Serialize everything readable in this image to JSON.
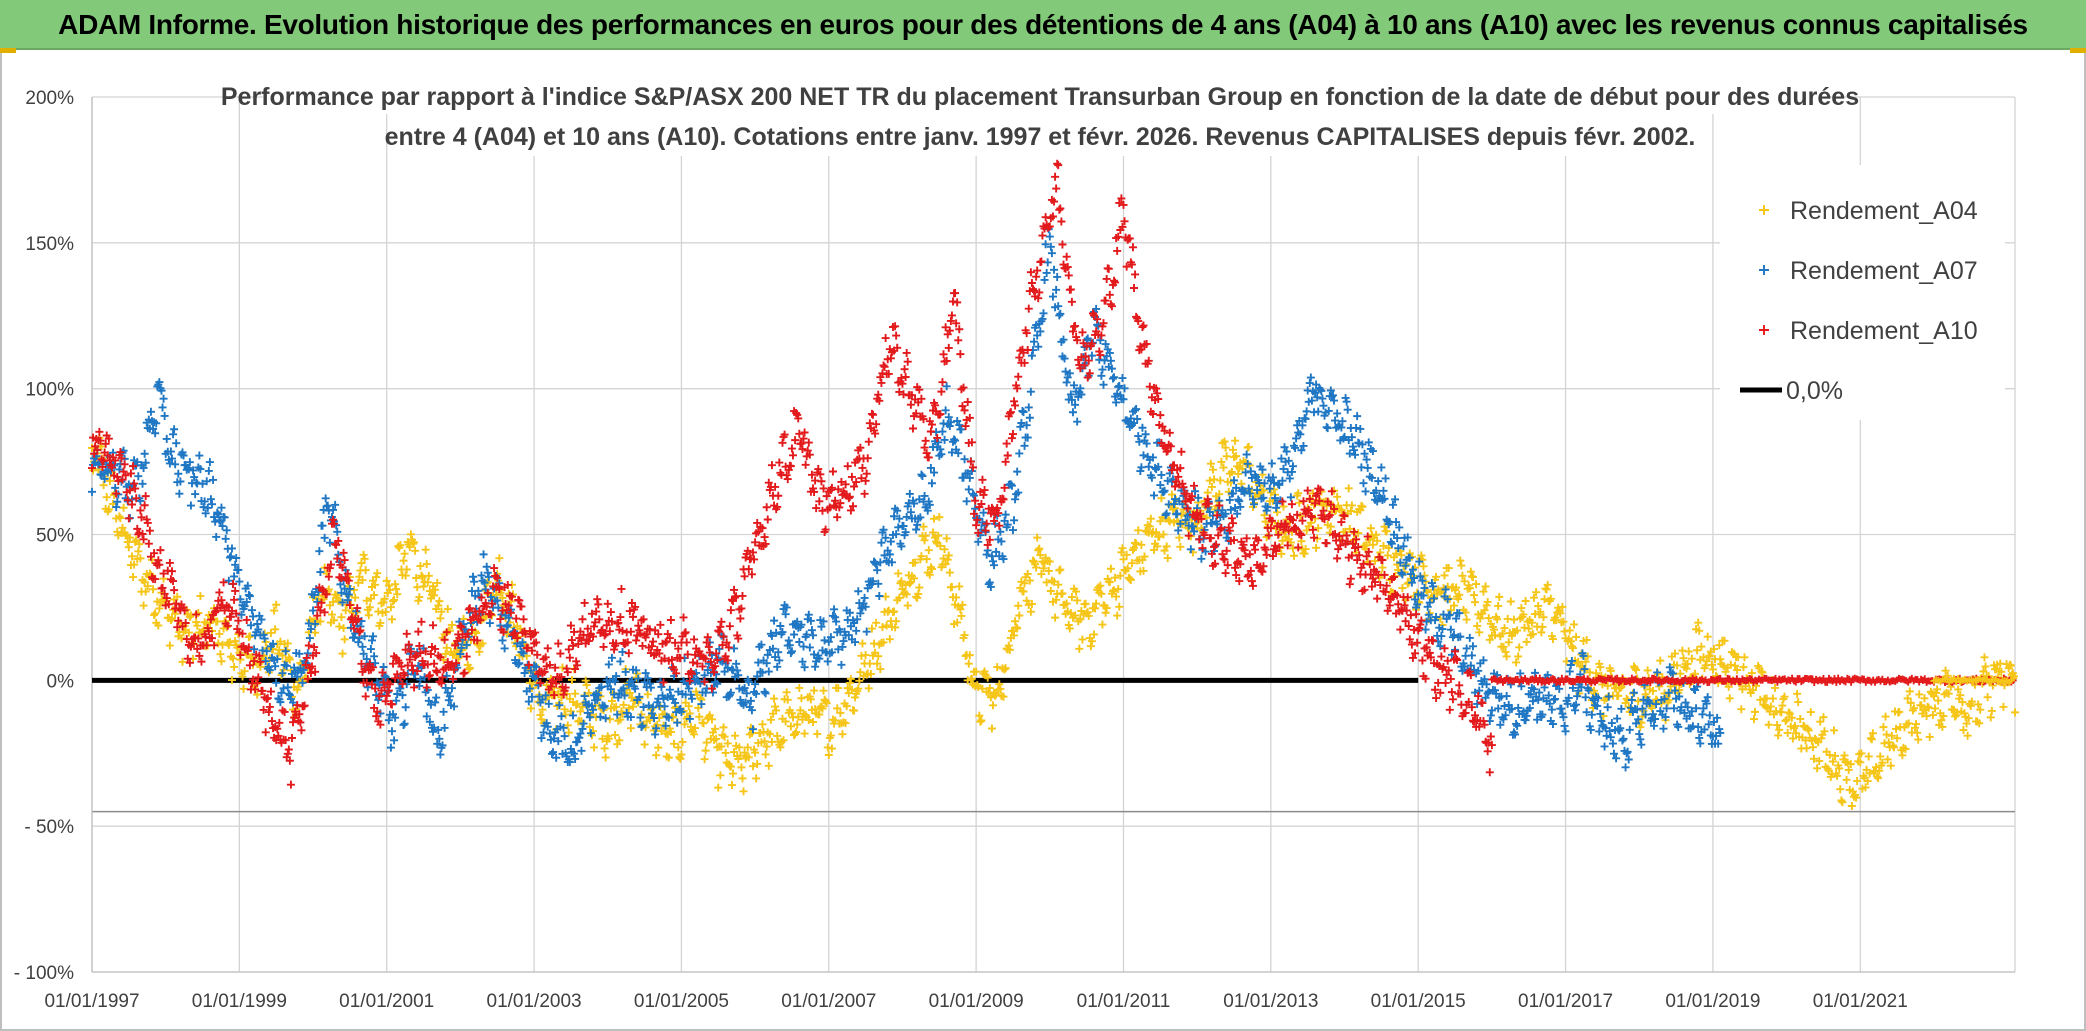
{
  "banner": {
    "title": "ADAM Informe. Evolution historique des performances en euros pour des détentions de 4 ans (A04) à 10 ans (A10) avec les revenus connus capitalisés",
    "background": "#82c97a"
  },
  "chart_data": {
    "type": "scatter",
    "title_line1": "Performance par rapport à l'indice S&P/ASX 200 NET TR  du placement Transurban Group en fonction de la date de début pour des durées",
    "title_line2": "entre 4 (A04) et 10 ans (A10). Cotations entre janv. 1997 et févr. 2026. Revenus CAPITALISES depuis févr. 2002.",
    "xlabel": "",
    "ylabel": "",
    "xlim": [
      1997.0,
      2023.1
    ],
    "ylim": [
      -100,
      200
    ],
    "y_ticks": [
      {
        "value": 200,
        "label": "200%"
      },
      {
        "value": 150,
        "label": "150%"
      },
      {
        "value": 100,
        "label": "100%"
      },
      {
        "value": 50,
        "label": "50%"
      },
      {
        "value": 0,
        "label": "0%"
      },
      {
        "value": -50,
        "label": "- 50%"
      },
      {
        "value": -100,
        "label": "- 100%"
      }
    ],
    "x_ticks": [
      {
        "value": 1997,
        "label": "01/01/1997"
      },
      {
        "value": 1999,
        "label": "01/01/1999"
      },
      {
        "value": 2001,
        "label": "01/01/2001"
      },
      {
        "value": 2003,
        "label": "01/01/2003"
      },
      {
        "value": 2005,
        "label": "01/01/2005"
      },
      {
        "value": 2007,
        "label": "01/01/2007"
      },
      {
        "value": 2009,
        "label": "01/01/2009"
      },
      {
        "value": 2011,
        "label": "01/01/2011"
      },
      {
        "value": 2013,
        "label": "01/01/2013"
      },
      {
        "value": 2015,
        "label": "01/01/2015"
      },
      {
        "value": 2017,
        "label": "01/01/2017"
      },
      {
        "value": 2019,
        "label": "01/01/2019"
      },
      {
        "value": 2021,
        "label": "01/01/2021"
      }
    ],
    "x_gridlines": [
      1997,
      1999,
      2001,
      2003,
      2005,
      2007,
      2009,
      2011,
      2013,
      2015,
      2017,
      2019,
      2021,
      2023.1
    ],
    "grid": true,
    "legend_position": "top-right",
    "series": [
      {
        "name": "Rendement_A04",
        "color": "#f5c518",
        "marker": "+",
        "x": [
          1997.0,
          1997.3,
          1997.6,
          1998.0,
          1998.3,
          1998.6,
          1998.9,
          1999.2,
          1999.5,
          1999.8,
          2000.1,
          2000.4,
          2000.7,
          2001.0,
          2001.3,
          2001.6,
          2001.9,
          2002.2,
          2002.5,
          2002.8,
          2003.1,
          2003.4,
          2003.7,
          2004.0,
          2004.3,
          2004.6,
          2004.9,
          2005.2,
          2005.5,
          2005.8,
          2006.1,
          2006.4,
          2006.7,
          2007.0,
          2007.3,
          2007.6,
          2007.9,
          2008.2,
          2008.5,
          2008.8,
          2009.0,
          2009.3,
          2009.6,
          2009.9,
          2010.2,
          2010.5,
          2010.8,
          2011.1,
          2011.4,
          2011.7,
          2012.0,
          2012.3,
          2012.6,
          2012.9,
          2013.2,
          2013.5,
          2013.8,
          2014.1,
          2014.4,
          2014.7,
          2015.0,
          2015.3,
          2015.6,
          2015.9,
          2016.2,
          2016.5,
          2016.8,
          2017.1,
          2017.4,
          2017.7,
          2018.0,
          2018.3,
          2018.6,
          2018.9,
          2019.2,
          2019.5,
          2019.8,
          2020.1,
          2020.4,
          2020.7,
          2021.0,
          2021.3,
          2021.6,
          2021.9,
          2022.2,
          2022.5,
          2022.8,
          2023.1
        ],
        "values": [
          80,
          60,
          40,
          25,
          15,
          20,
          10,
          5,
          15,
          -5,
          30,
          20,
          35,
          25,
          45,
          30,
          10,
          15,
          35,
          15,
          -10,
          -5,
          -10,
          -15,
          -5,
          -15,
          -20,
          -10,
          -25,
          -30,
          -20,
          -15,
          -10,
          -15,
          -5,
          10,
          25,
          40,
          50,
          20,
          -5,
          -5,
          30,
          40,
          25,
          20,
          30,
          40,
          50,
          55,
          55,
          70,
          75,
          60,
          50,
          55,
          60,
          55,
          45,
          40,
          35,
          30,
          30,
          25,
          15,
          20,
          25,
          10,
          0,
          -5,
          -5,
          -5,
          5,
          10,
          5,
          0,
          -10,
          -15,
          -20,
          -30,
          -35,
          -25,
          -15,
          -10,
          -5,
          -10,
          0,
          0
        ]
      },
      {
        "name": "Rendement_A07",
        "color": "#1f77c4",
        "marker": "+",
        "x": [
          1997.0,
          1997.3,
          1997.6,
          1997.9,
          1998.1,
          1998.4,
          1998.7,
          1999.0,
          1999.3,
          1999.6,
          1999.9,
          2000.2,
          2000.5,
          2000.8,
          2001.1,
          2001.4,
          2001.7,
          2002.0,
          2002.3,
          2002.6,
          2002.9,
          2003.2,
          2003.5,
          2003.8,
          2004.1,
          2004.4,
          2004.7,
          2005.0,
          2005.3,
          2005.6,
          2005.9,
          2006.2,
          2006.5,
          2006.8,
          2007.1,
          2007.4,
          2007.7,
          2008.0,
          2008.3,
          2008.6,
          2008.9,
          2009.2,
          2009.5,
          2009.8,
          2010.0,
          2010.3,
          2010.6,
          2010.9,
          2011.2,
          2011.5,
          2011.8,
          2012.1,
          2012.4,
          2012.7,
          2013.0,
          2013.3,
          2013.6,
          2013.9,
          2014.2,
          2014.5,
          2014.8,
          2015.1,
          2015.4,
          2015.7,
          2016.0,
          2016.3,
          2016.6,
          2016.9,
          2017.2,
          2017.5,
          2017.8,
          2018.1,
          2018.4,
          2018.7,
          2019.0,
          2019.1
        ],
        "values": [
          75,
          70,
          65,
          100,
          75,
          70,
          60,
          30,
          15,
          0,
          5,
          60,
          25,
          5,
          -15,
          10,
          -20,
          10,
          35,
          20,
          5,
          -15,
          -25,
          -10,
          0,
          -5,
          -10,
          -5,
          0,
          5,
          -10,
          10,
          20,
          10,
          15,
          20,
          40,
          55,
          60,
          90,
          70,
          40,
          60,
          110,
          150,
          90,
          120,
          100,
          85,
          70,
          60,
          50,
          55,
          70,
          65,
          75,
          100,
          90,
          80,
          65,
          45,
          25,
          20,
          5,
          -5,
          -10,
          -5,
          -10,
          0,
          -15,
          -20,
          -10,
          -5,
          -10,
          -15,
          -20
        ]
      },
      {
        "name": "Rendement_A10",
        "color": "#e31a1c",
        "marker": "+",
        "x": [
          1997.0,
          1997.3,
          1997.6,
          1997.9,
          1998.2,
          1998.5,
          1998.8,
          1999.1,
          1999.4,
          1999.7,
          2000.0,
          2000.3,
          2000.6,
          2000.9,
          2001.2,
          2001.5,
          2001.8,
          2002.1,
          2002.4,
          2002.7,
          2003.0,
          2003.3,
          2003.6,
          2003.9,
          2004.2,
          2004.5,
          2004.8,
          2005.1,
          2005.4,
          2005.7,
          2006.0,
          2006.3,
          2006.6,
          2006.9,
          2007.2,
          2007.5,
          2007.8,
          2008.1,
          2008.4,
          2008.7,
          2009.0,
          2009.3,
          2009.6,
          2009.9,
          2010.1,
          2010.4,
          2010.7,
          2011.0,
          2011.3,
          2011.6,
          2011.9,
          2012.2,
          2012.5,
          2012.8,
          2013.1,
          2013.4,
          2013.7,
          2014.0,
          2014.3,
          2014.6,
          2014.9,
          2015.2,
          2015.5,
          2015.8,
          2016.0
        ],
        "values": [
          80,
          75,
          60,
          40,
          20,
          10,
          30,
          10,
          -10,
          -25,
          10,
          50,
          15,
          -10,
          5,
          10,
          5,
          15,
          30,
          25,
          10,
          0,
          15,
          20,
          20,
          15,
          10,
          10,
          5,
          20,
          45,
          70,
          85,
          60,
          65,
          75,
          115,
          100,
          80,
          130,
          60,
          55,
          110,
          150,
          170,
          110,
          120,
          160,
          110,
          80,
          60,
          50,
          45,
          40,
          50,
          55,
          60,
          45,
          40,
          30,
          20,
          5,
          0,
          -10,
          -25
        ]
      },
      {
        "name": "0,0%",
        "color": "#000000",
        "type": "line",
        "x": [
          1997.0,
          2015.0
        ],
        "values": [
          0,
          0
        ]
      }
    ],
    "red_zero_band": {
      "x": [
        2016.0,
        2023.1
      ],
      "value": 0,
      "color": "#e31a1c"
    },
    "yellow_zero_band": {
      "x": [
        2022.0,
        2023.1
      ],
      "value": 0,
      "color": "#f5c518"
    }
  }
}
